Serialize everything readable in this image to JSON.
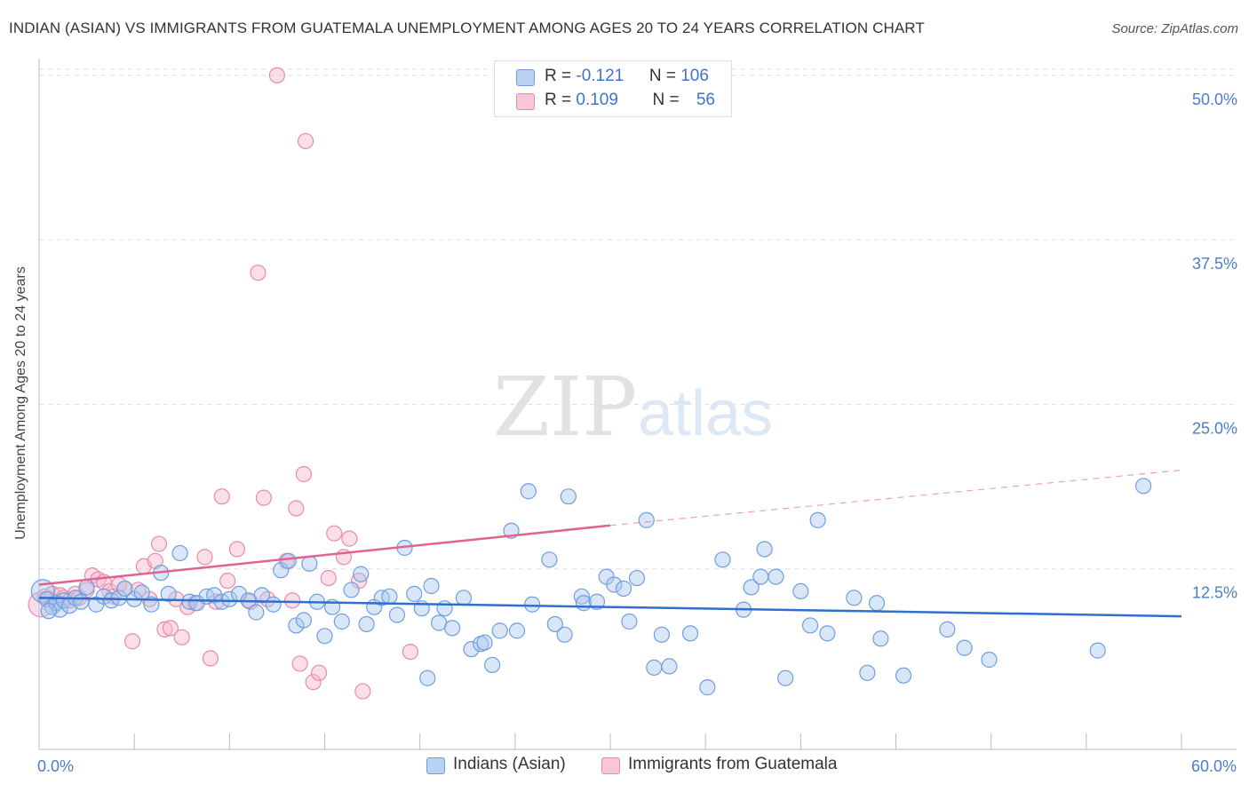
{
  "header": {
    "title": "INDIAN (ASIAN) VS IMMIGRANTS FROM GUATEMALA UNEMPLOYMENT AMONG AGES 20 TO 24 YEARS CORRELATION CHART",
    "source": "Source: ZipAtlas.com"
  },
  "watermark": {
    "zip": "ZIP",
    "atlas": "atlas"
  },
  "legend_top": {
    "rows": [
      {
        "r_label": "R = ",
        "r_value": "-0.121",
        "n_label": "N = ",
        "n_value": "106"
      },
      {
        "r_label": "R = ",
        "r_value": "0.109",
        "n_label": "N = ",
        "n_value": "56"
      }
    ]
  },
  "legend_bottom": {
    "items": [
      {
        "label": "Indians (Asian)"
      },
      {
        "label": "Immigrants from Guatemala"
      }
    ]
  },
  "colors": {
    "blue_fill": "#a9c8f0",
    "blue_stroke": "#6f9ee0",
    "blue_line": "#2f6fcf",
    "pink_fill": "#f6b7cb",
    "pink_stroke": "#ea8aab",
    "pink_line": "#e0638f",
    "grid": "#dddddd",
    "tick_label": "#4a7fc8"
  },
  "chart_data": {
    "type": "scatter",
    "title": "INDIAN (ASIAN) VS IMMIGRANTS FROM GUATEMALA UNEMPLOYMENT AMONG AGES 20 TO 24 YEARS CORRELATION CHART",
    "xlabel": "",
    "ylabel": "Unemployment Among Ages 20 to 24 years",
    "xlim": [
      0,
      60
    ],
    "ylim": [
      0,
      51
    ],
    "x_tick_labels": [
      "0.0%",
      "60.0%"
    ],
    "y_ticks": [
      12.5,
      25.0,
      37.5,
      50.0
    ],
    "y_tick_labels": [
      "12.5%",
      "25.0%",
      "37.5%",
      "50.0%"
    ],
    "grid": true,
    "legend_position": "bottom",
    "series": [
      {
        "name": "Indians (Asian)",
        "r": -0.121,
        "n": 106,
        "trend": {
          "x": [
            0,
            60
          ],
          "y": [
            10.3,
            8.9
          ]
        },
        "points": [
          [
            0.2,
            10.8
          ],
          [
            0.4,
            10.2
          ],
          [
            0.7,
            9.6
          ],
          [
            0.9,
            9.9
          ],
          [
            1.1,
            9.4
          ],
          [
            1.3,
            10.1
          ],
          [
            1.6,
            9.7
          ],
          [
            1.9,
            10.3
          ],
          [
            2.2,
            10.0
          ],
          [
            2.5,
            11.1
          ],
          [
            3.0,
            9.8
          ],
          [
            3.4,
            10.4
          ],
          [
            3.8,
            10.1
          ],
          [
            4.2,
            10.3
          ],
          [
            4.5,
            11.0
          ],
          [
            5.0,
            10.2
          ],
          [
            5.4,
            10.7
          ],
          [
            5.9,
            9.8
          ],
          [
            6.4,
            12.2
          ],
          [
            6.8,
            10.6
          ],
          [
            7.4,
            13.7
          ],
          [
            7.9,
            10.0
          ],
          [
            8.3,
            9.9
          ],
          [
            8.8,
            10.4
          ],
          [
            9.2,
            10.5
          ],
          [
            9.6,
            10.0
          ],
          [
            10.0,
            10.2
          ],
          [
            10.5,
            10.6
          ],
          [
            11.0,
            10.1
          ],
          [
            11.4,
            9.2
          ],
          [
            11.7,
            10.5
          ],
          [
            12.3,
            9.8
          ],
          [
            12.7,
            12.4
          ],
          [
            13.1,
            13.1
          ],
          [
            13.5,
            8.2
          ],
          [
            13.9,
            8.6
          ],
          [
            14.2,
            12.9
          ],
          [
            14.6,
            10.0
          ],
          [
            15.0,
            7.4
          ],
          [
            15.4,
            9.6
          ],
          [
            15.9,
            8.5
          ],
          [
            16.4,
            10.9
          ],
          [
            16.9,
            12.1
          ],
          [
            17.2,
            8.3
          ],
          [
            17.6,
            9.6
          ],
          [
            18.0,
            10.3
          ],
          [
            18.4,
            10.4
          ],
          [
            18.8,
            9.0
          ],
          [
            19.2,
            14.1
          ],
          [
            19.7,
            10.6
          ],
          [
            20.1,
            9.5
          ],
          [
            20.4,
            4.2
          ],
          [
            20.6,
            11.2
          ],
          [
            21.0,
            8.4
          ],
          [
            21.3,
            9.5
          ],
          [
            21.7,
            8.0
          ],
          [
            22.3,
            10.3
          ],
          [
            22.7,
            6.4
          ],
          [
            23.2,
            6.8
          ],
          [
            23.4,
            6.9
          ],
          [
            23.8,
            5.2
          ],
          [
            24.2,
            7.8
          ],
          [
            24.8,
            15.4
          ],
          [
            25.1,
            7.8
          ],
          [
            25.9,
            9.8
          ],
          [
            25.7,
            18.4
          ],
          [
            26.8,
            13.2
          ],
          [
            27.1,
            8.3
          ],
          [
            27.6,
            7.5
          ],
          [
            27.8,
            18.0
          ],
          [
            28.5,
            10.4
          ],
          [
            28.6,
            9.9
          ],
          [
            29.3,
            10.0
          ],
          [
            29.8,
            11.9
          ],
          [
            30.2,
            11.3
          ],
          [
            30.7,
            11.0
          ],
          [
            31.0,
            8.5
          ],
          [
            31.4,
            11.8
          ],
          [
            31.9,
            16.2
          ],
          [
            32.3,
            5.0
          ],
          [
            32.7,
            7.5
          ],
          [
            33.1,
            5.1
          ],
          [
            34.2,
            7.6
          ],
          [
            35.1,
            3.5
          ],
          [
            35.9,
            13.2
          ],
          [
            37.0,
            9.4
          ],
          [
            37.4,
            11.1
          ],
          [
            37.9,
            11.9
          ],
          [
            38.1,
            14.0
          ],
          [
            38.7,
            11.9
          ],
          [
            39.2,
            4.2
          ],
          [
            40.0,
            10.8
          ],
          [
            40.5,
            8.2
          ],
          [
            40.9,
            16.2
          ],
          [
            41.4,
            7.6
          ],
          [
            42.8,
            10.3
          ],
          [
            43.5,
            4.6
          ],
          [
            44.0,
            9.9
          ],
          [
            44.2,
            7.2
          ],
          [
            45.4,
            4.4
          ],
          [
            47.7,
            7.9
          ],
          [
            48.6,
            6.5
          ],
          [
            49.9,
            5.6
          ],
          [
            55.6,
            6.3
          ],
          [
            58.0,
            18.8
          ],
          [
            0.5,
            9.3
          ]
        ]
      },
      {
        "name": "Immigrants from Guatemala",
        "r": 0.109,
        "n": 56,
        "trend": {
          "x": [
            0,
            30
          ],
          "y": [
            11.3,
            15.8
          ],
          "dashed_x": [
            30,
            60
          ],
          "dashed_y": [
            15.8,
            20.0
          ]
        },
        "points": [
          [
            0.1,
            9.8
          ],
          [
            0.3,
            10.4
          ],
          [
            0.5,
            10.2
          ],
          [
            0.7,
            10.6
          ],
          [
            0.9,
            10.0
          ],
          [
            1.1,
            10.5
          ],
          [
            1.3,
            10.3
          ],
          [
            1.6,
            10.1
          ],
          [
            1.9,
            10.6
          ],
          [
            2.1,
            10.3
          ],
          [
            2.5,
            10.9
          ],
          [
            2.8,
            12.0
          ],
          [
            3.1,
            11.7
          ],
          [
            3.4,
            11.5
          ],
          [
            3.7,
            10.8
          ],
          [
            3.9,
            10.4
          ],
          [
            4.2,
            11.3
          ],
          [
            4.5,
            11.0
          ],
          [
            4.9,
            7.0
          ],
          [
            5.2,
            10.9
          ],
          [
            5.5,
            12.7
          ],
          [
            5.8,
            10.2
          ],
          [
            6.1,
            13.1
          ],
          [
            6.3,
            14.4
          ],
          [
            6.6,
            7.9
          ],
          [
            6.9,
            8.0
          ],
          [
            7.2,
            10.2
          ],
          [
            7.5,
            7.3
          ],
          [
            7.8,
            9.6
          ],
          [
            8.2,
            9.9
          ],
          [
            8.7,
            13.4
          ],
          [
            9.0,
            5.7
          ],
          [
            9.3,
            10.0
          ],
          [
            9.6,
            18.0
          ],
          [
            9.9,
            11.6
          ],
          [
            10.4,
            14.0
          ],
          [
            11.1,
            10.0
          ],
          [
            11.5,
            35.0
          ],
          [
            11.8,
            17.9
          ],
          [
            12.0,
            10.2
          ],
          [
            12.5,
            50.0
          ],
          [
            13.0,
            13.1
          ],
          [
            13.3,
            10.1
          ],
          [
            13.5,
            17.1
          ],
          [
            13.7,
            5.3
          ],
          [
            13.9,
            19.7
          ],
          [
            14.0,
            45.0
          ],
          [
            14.4,
            3.9
          ],
          [
            14.7,
            4.6
          ],
          [
            15.2,
            11.8
          ],
          [
            15.5,
            15.2
          ],
          [
            16.0,
            13.4
          ],
          [
            16.3,
            14.8
          ],
          [
            16.8,
            11.6
          ],
          [
            17.0,
            3.2
          ],
          [
            19.5,
            6.2
          ]
        ]
      }
    ]
  }
}
